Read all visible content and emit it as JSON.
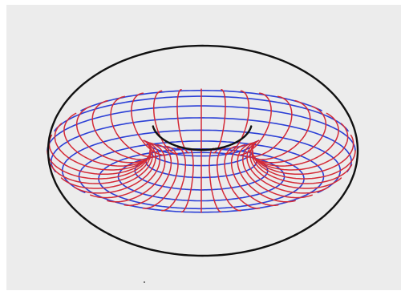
{
  "image": {
    "subject": "torus-line-drawing",
    "colors": {
      "frame_background": "#ffffff",
      "paper": "#ececec",
      "outline": "#111111",
      "meridians": "#d42a36",
      "parallels": "#2b3fd6"
    }
  }
}
